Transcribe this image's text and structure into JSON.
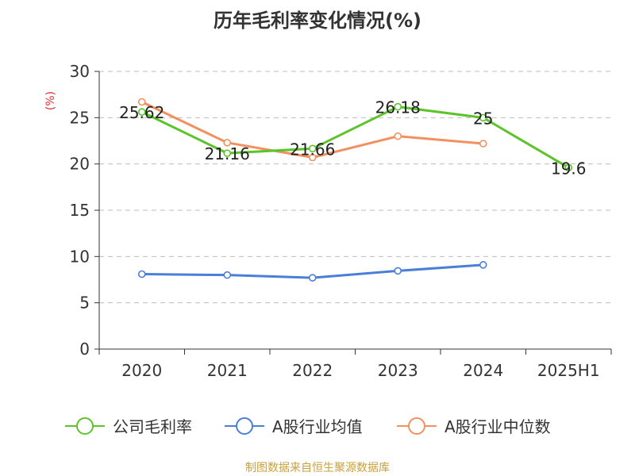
{
  "chart_data": {
    "type": "line",
    "title": "历年毛利率变化情况(%)",
    "ylabel": "(%)",
    "ylim": [
      0,
      30
    ],
    "yticks": [
      0,
      5,
      10,
      15,
      20,
      25,
      30
    ],
    "categories": [
      "2020",
      "2021",
      "2022",
      "2023",
      "2024",
      "2025H1"
    ],
    "grid": "horizontal dashed",
    "legend_position": "bottom",
    "series": [
      {
        "name": "公司毛利率",
        "color": "#5cc32b",
        "values": [
          25.62,
          21.16,
          21.66,
          26.18,
          25,
          19.6
        ],
        "labels": [
          "25.62",
          "21.16",
          "21.66",
          "26.18",
          "25",
          "19.6"
        ]
      },
      {
        "name": "A股行业均值",
        "color": "#4a7fd8",
        "values": [
          8.1,
          8.0,
          7.7,
          8.45,
          9.1,
          null
        ]
      },
      {
        "name": "A股行业中位数",
        "color": "#f39060",
        "values": [
          26.7,
          22.3,
          20.7,
          23.0,
          22.2,
          null
        ]
      }
    ]
  },
  "footer": "制图数据来自恒生聚源数据库"
}
